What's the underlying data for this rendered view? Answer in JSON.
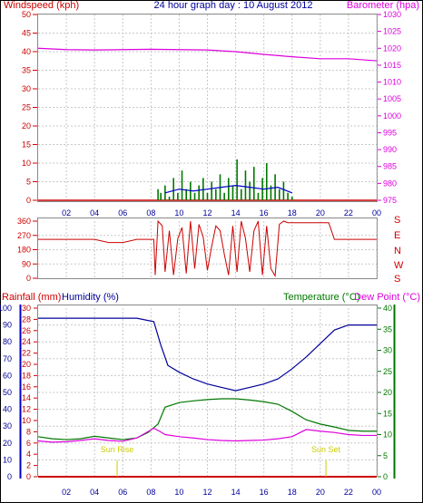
{
  "title": "24 hour graph day : 10 August 2012",
  "colors": {
    "red": "#cc0000",
    "magenta": "#dd00dd",
    "navy": "#000099",
    "green": "#007700",
    "blue": "#0000cc",
    "grid": "#c8c8c8",
    "sun": "#cccc00"
  },
  "x_ticks": [
    "02",
    "04",
    "06",
    "08",
    "10",
    "12",
    "14",
    "16",
    "18",
    "20",
    "22",
    "00"
  ],
  "chart_data": [
    {
      "type": "line",
      "left_label": "Windspeed (kph)",
      "right_label": "Barometer (hpa)",
      "left_ticks": [
        0,
        5,
        10,
        15,
        20,
        25,
        30,
        35,
        40,
        45,
        50
      ],
      "right_ticks": [
        975,
        980,
        985,
        990,
        995,
        1000,
        1005,
        1010,
        1015,
        1020,
        1025,
        1030
      ],
      "ylim_left": [
        0,
        50
      ],
      "ylim_right": [
        975,
        1030
      ],
      "series": [
        {
          "axis": "right",
          "color": "#dd00dd",
          "x": [
            0,
            2,
            4,
            6,
            8,
            10,
            12,
            14,
            16,
            18,
            20,
            22,
            24
          ],
          "values": [
            1020.0,
            1019.6,
            1019.5,
            1019.6,
            1019.7,
            1019.6,
            1019.5,
            1019.0,
            1018.2,
            1017.5,
            1016.9,
            1016.9,
            1016.3
          ]
        },
        {
          "axis": "left",
          "color": "#007700",
          "x": [
            8.5,
            8.7,
            9.0,
            9.3,
            9.6,
            9.9,
            10.2,
            10.5,
            10.8,
            11.1,
            11.4,
            11.7,
            12.0,
            12.3,
            12.6,
            12.9,
            13.2,
            13.5,
            13.8,
            14.1,
            14.4,
            14.7,
            15.0,
            15.3,
            15.6,
            15.9,
            16.2,
            16.5,
            16.8,
            17.1,
            17.4,
            17.7,
            18.0
          ],
          "values": [
            3,
            2,
            4,
            1,
            6,
            2,
            8,
            3,
            5,
            2,
            4,
            6,
            2,
            5,
            3,
            7,
            2,
            6,
            4,
            11,
            3,
            8,
            5,
            9,
            2,
            6,
            10,
            4,
            7,
            3,
            5,
            2,
            1
          ]
        },
        {
          "axis": "left",
          "color": "#0000cc",
          "x": [
            9,
            10,
            11,
            12,
            13,
            14,
            15,
            16,
            17,
            18
          ],
          "values": [
            2,
            3,
            2.5,
            3,
            3.5,
            4,
            3.5,
            3,
            3.5,
            2
          ]
        }
      ]
    },
    {
      "type": "line",
      "left_ticks": [
        0,
        90,
        180,
        270,
        360
      ],
      "right_ticks": [
        "S",
        "E",
        "N",
        "W",
        "S"
      ],
      "ylim": [
        0,
        360
      ],
      "series": [
        {
          "color": "#cc0000",
          "x": [
            0,
            4,
            5,
            6,
            7,
            8.2,
            8.3,
            8.5,
            8.8,
            9.0,
            9.3,
            9.6,
            9.9,
            10.2,
            10.5,
            10.8,
            11.1,
            11.4,
            11.7,
            12.0,
            12.3,
            12.6,
            12.9,
            13.2,
            13.5,
            13.8,
            14.1,
            14.4,
            14.7,
            15.0,
            15.3,
            15.6,
            15.9,
            16.2,
            16.5,
            16.8,
            17.1,
            17.4,
            17.7,
            18.0,
            18.1,
            20.6,
            21.0,
            24
          ],
          "values": [
            245,
            245,
            225,
            225,
            245,
            245,
            20,
            360,
            330,
            40,
            300,
            20,
            250,
            320,
            30,
            360,
            60,
            340,
            260,
            50,
            200,
            330,
            300,
            150,
            20,
            330,
            40,
            360,
            250,
            40,
            300,
            360,
            20,
            330,
            60,
            15,
            340,
            360,
            350,
            350,
            350,
            350,
            245,
            245
          ]
        }
      ]
    },
    {
      "type": "line",
      "left_label": "Rainfall (mm)",
      "left2_label": "Humidity (%)",
      "right_label": "Temperature (°C)",
      "right2_label": "Dew Point (°C)",
      "rain_ticks": [
        0,
        10,
        20,
        30,
        40,
        50,
        60,
        70,
        80,
        90,
        100
      ],
      "humidity_ticks": [
        0,
        2,
        4,
        6,
        8,
        10,
        12,
        14,
        16,
        18,
        20,
        22,
        24,
        26,
        28,
        30
      ],
      "temp_ticks": [
        0,
        5,
        10,
        15,
        20,
        25,
        30,
        35,
        40
      ],
      "ylim_humidity": [
        0,
        100
      ],
      "ylim_temperature": [
        0,
        40
      ],
      "annotations": [
        {
          "label": "Sun Rise",
          "x": 5.6
        },
        {
          "label": "Sun Set",
          "x": 20.4
        }
      ],
      "series": [
        {
          "name": "Humidity",
          "axis": "humidity",
          "color": "#000099",
          "x": [
            0,
            1,
            2,
            3,
            4,
            5,
            6,
            7,
            8.2,
            8.7,
            9.2,
            10,
            11,
            12,
            13,
            14,
            15,
            16,
            17,
            18,
            19,
            20,
            21,
            22,
            23,
            24
          ],
          "values": [
            94,
            94,
            94,
            94,
            94,
            94,
            94,
            94,
            92,
            78,
            66,
            62,
            58,
            55,
            53,
            51,
            53,
            55,
            58,
            64,
            71,
            79,
            87,
            90,
            90,
            90
          ]
        },
        {
          "name": "Temperature",
          "axis": "temperature",
          "color": "#007700",
          "x": [
            0,
            1,
            2,
            3,
            4,
            5,
            6,
            7,
            7.8,
            8.5,
            9,
            10,
            11,
            12,
            13,
            14,
            15,
            16,
            17,
            18,
            19,
            20,
            21,
            22,
            23,
            24
          ],
          "values": [
            9.5,
            9.0,
            8.8,
            9.0,
            9.6,
            9.2,
            8.8,
            9.2,
            10.5,
            12.5,
            16.5,
            17.6,
            18.0,
            18.3,
            18.5,
            18.5,
            18.2,
            17.8,
            17.2,
            15.5,
            13.5,
            12.5,
            11.8,
            11.0,
            10.8,
            10.8
          ]
        },
        {
          "name": "Dew Point",
          "axis": "temperature",
          "color": "#dd00dd",
          "x": [
            0,
            1,
            2,
            3,
            4,
            5,
            6,
            7,
            8.2,
            8.6,
            9,
            10,
            11,
            12,
            13,
            14,
            15,
            16,
            17,
            18,
            19,
            20,
            21,
            22,
            23,
            24
          ],
          "values": [
            8.5,
            8.2,
            8.3,
            8.6,
            9.0,
            8.6,
            8.4,
            9.2,
            11.5,
            10.8,
            10.0,
            9.5,
            9.2,
            8.8,
            8.6,
            8.5,
            8.6,
            8.7,
            9.0,
            9.5,
            11.2,
            10.8,
            10.5,
            10.0,
            9.8,
            9.8
          ]
        },
        {
          "name": "Rainfall",
          "axis": "rain",
          "color": "#cc0000",
          "x": [
            0,
            24
          ],
          "values": [
            0,
            0
          ]
        }
      ]
    }
  ]
}
